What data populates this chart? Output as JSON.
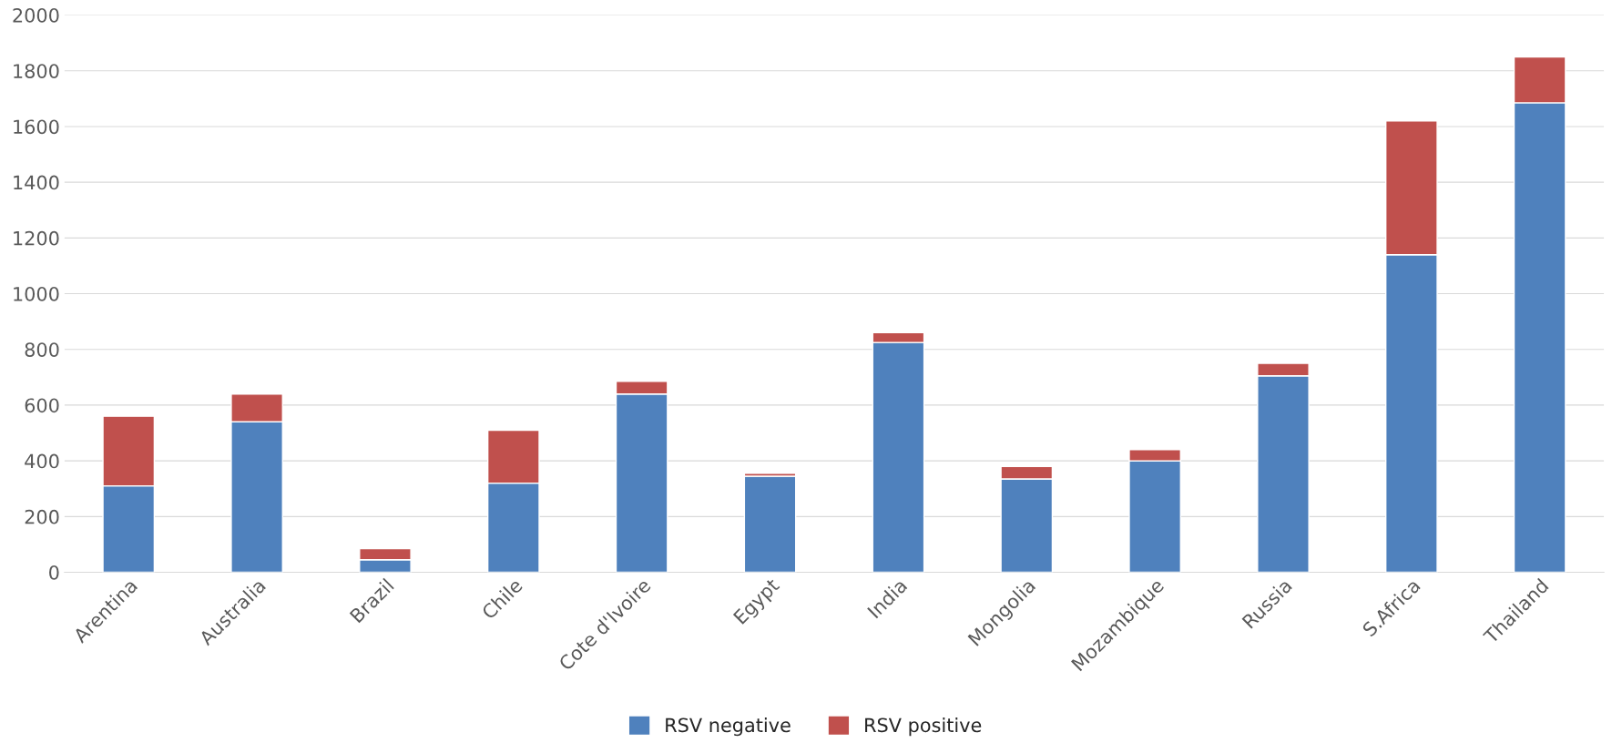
{
  "chart_data": {
    "type": "bar",
    "stacked": true,
    "categories": [
      "Arentina",
      "Australia",
      "Brazil",
      "Chile",
      "Cote d'Ivoire",
      "Egypt",
      "India",
      "Mongolia",
      "Mozambique",
      "Russia",
      "S.Africa",
      "Thailand"
    ],
    "series": [
      {
        "name": "RSV negative",
        "color": "#4f81bd",
        "values": [
          310,
          540,
          45,
          320,
          640,
          345,
          825,
          335,
          400,
          705,
          1140,
          1685
        ]
      },
      {
        "name": "RSV positive",
        "color": "#c0504d",
        "values": [
          250,
          100,
          40,
          190,
          45,
          10,
          35,
          45,
          40,
          45,
          480,
          165
        ]
      }
    ],
    "ylim": [
      0,
      2000
    ],
    "yticks": [
      0,
      200,
      400,
      600,
      800,
      1000,
      1200,
      1400,
      1600,
      1800,
      2000
    ],
    "grid": "y",
    "legend": "bottom"
  }
}
